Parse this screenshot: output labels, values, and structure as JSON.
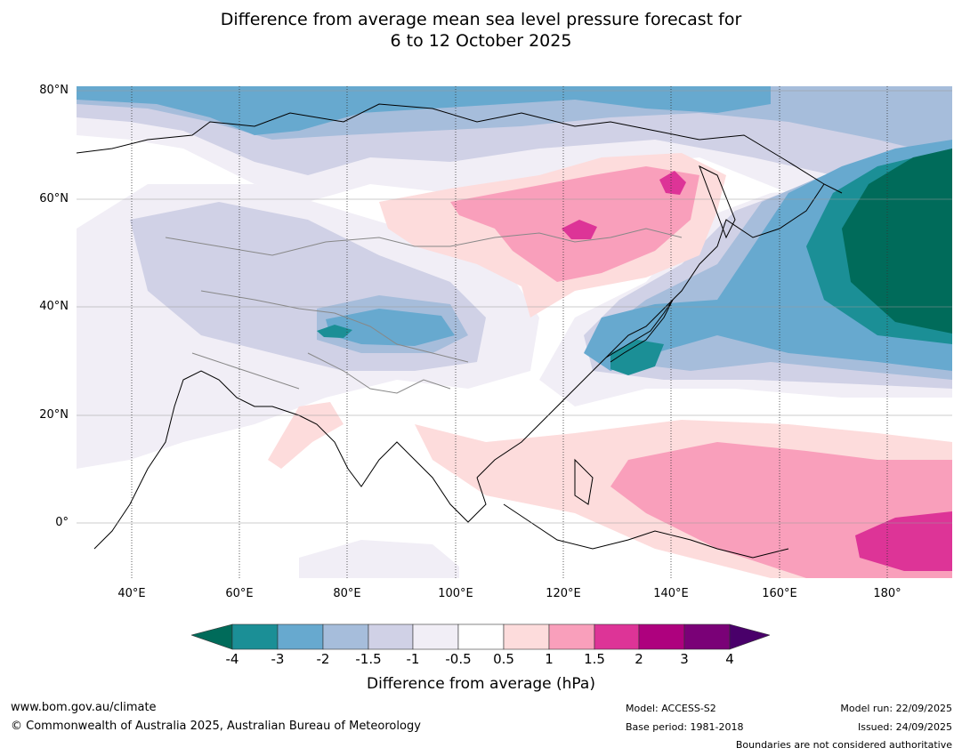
{
  "title": {
    "line1": "Difference from average mean sea level pressure forecast for",
    "line2": "6 to 12 October 2025"
  },
  "axes": {
    "lat_labels": [
      "80°N",
      "60°N",
      "40°N",
      "20°N",
      "0°"
    ],
    "lon_labels": [
      "40°E",
      "60°E",
      "80°E",
      "100°E",
      "120°E",
      "140°E",
      "160°E",
      "180°"
    ]
  },
  "colorbar": {
    "ticks": [
      "-4",
      "-3",
      "-2",
      "-1.5",
      "-1",
      "-0.5",
      "0.5",
      "1",
      "1.5",
      "2",
      "3",
      "4"
    ],
    "colors": {
      "lt_m4": "#006b5a",
      "m4_m3": "#1b8f96",
      "m3_m2": "#67a9cf",
      "m2_m15": "#a6bddb",
      "m15_m1": "#d0d1e6",
      "m1_m05": "#f1eef6",
      "m05_05": "#ffffff",
      "p05_1": "#fddcdc",
      "p1_15": "#f99fbb",
      "p15_2": "#dd3497",
      "p2_3": "#ae017e",
      "p3_4": "#7a0177",
      "gt_4": "#49006a"
    },
    "label": "Difference from average (hPa)"
  },
  "footer": {
    "url": "www.bom.gov.au/climate",
    "copyright": "© Commonwealth of Australia 2025, Australian Bureau of Meteorology",
    "model": "Model: ACCESS-S2",
    "base_period": "Base period: 1981-2018",
    "model_run": "Model run: 22/09/2025",
    "issued": "Issued: 24/09/2025",
    "boundaries": "Boundaries are not considered authoritative"
  }
}
